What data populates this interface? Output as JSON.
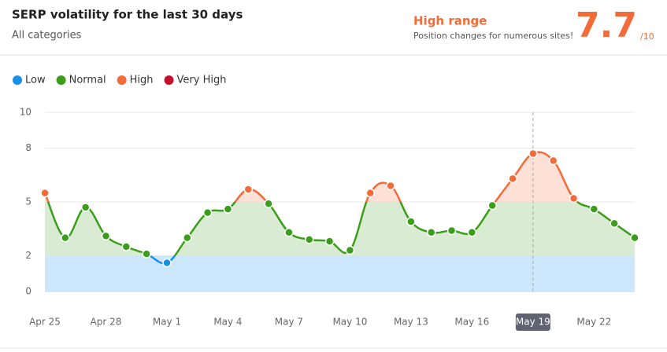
{
  "chart_data": {
    "type": "line",
    "title": "SERP volatility for the last 30 days",
    "subtitle": "All categories",
    "range_title": "High range",
    "range_note": "Position changes for numerous sites!",
    "score": 7.7,
    "score_max": "/10",
    "categories": [
      "Apr 25",
      null,
      null,
      "Apr 28",
      null,
      null,
      "May 1",
      null,
      null,
      "May 4",
      null,
      null,
      "May 7",
      null,
      null,
      "May 10",
      null,
      null,
      "May 13",
      null,
      null,
      "May 16",
      null,
      null,
      "May 19",
      null,
      null,
      "May 22",
      null,
      null
    ],
    "values": [
      5.5,
      3.0,
      4.7,
      3.1,
      2.5,
      2.1,
      1.6,
      3.0,
      4.4,
      4.6,
      5.7,
      4.9,
      3.3,
      2.9,
      2.8,
      2.3,
      5.5,
      5.9,
      3.9,
      3.3,
      3.4,
      3.3,
      4.8,
      6.3,
      7.7,
      7.3,
      5.2,
      4.6,
      3.8,
      3.0
    ],
    "selected": "May 19",
    "bands": [
      {
        "name": "Low",
        "color": "#1a8fe8",
        "fill": "#cce6fb",
        "from": 0,
        "to": 2
      },
      {
        "name": "Normal",
        "color": "#3a9e1a",
        "fill": "#d9ecd3",
        "from": 2,
        "to": 5
      },
      {
        "name": "High",
        "color": "#f26b38",
        "fill": "#fde0d6",
        "from": 5,
        "to": 8
      },
      {
        "name": "Very High",
        "color": "#c8102e",
        "fill": "#f7cfd5",
        "from": 8,
        "to": 10
      }
    ],
    "ylim": [
      0,
      10
    ],
    "yticks": [
      0,
      2,
      5,
      8,
      10
    ],
    "grid": true
  }
}
